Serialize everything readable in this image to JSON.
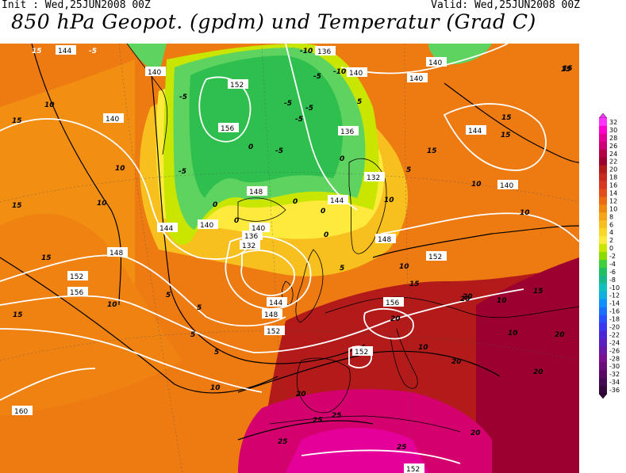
{
  "header": {
    "init": "Init : Wed,25JUN2008 00Z",
    "valid": "Valid: Wed,25JUN2008 00Z",
    "title": "850 hPa Geopot. (gpdm) und Temperatur (Grad C)"
  },
  "legend": {
    "labels": [
      "32",
      "30",
      "28",
      "26",
      "24",
      "22",
      "20",
      "18",
      "16",
      "14",
      "12",
      "10",
      "8",
      "6",
      "4",
      "2",
      "0",
      "-2",
      "-4",
      "-6",
      "-8",
      "-10",
      "-12",
      "-14",
      "-16",
      "-18",
      "-20",
      "-22",
      "-24",
      "-26",
      "-28",
      "-30",
      "-32",
      "-34",
      "-36"
    ],
    "colors": [
      "#ff33ff",
      "#ff00cc",
      "#e6009a",
      "#cc0077",
      "#b30047",
      "#9b0030",
      "#b31a1a",
      "#c8281e",
      "#d8361e",
      "#e24d1a",
      "#eb6a14",
      "#f0880f",
      "#f5a514",
      "#f8c01e",
      "#fbd72a",
      "#fdea3c",
      "#c8e600",
      "#8cdc00",
      "#3fcf3f",
      "#20c060",
      "#18b88a",
      "#10c0c0",
      "#10b0e0",
      "#1090ff",
      "#1870ff",
      "#2850ff",
      "#3a38f0",
      "#4a28d8",
      "#5a20c0",
      "#6a18a8",
      "#7a1090",
      "#6a0c7a",
      "#580a66",
      "#460852",
      "#34063e"
    ]
  },
  "map_labels": {
    "geopotential": [
      "144",
      "140",
      "140",
      "152",
      "156",
      "136",
      "140",
      "140",
      "140",
      "144",
      "132",
      "148",
      "144",
      "144",
      "140",
      "140",
      "136",
      "132",
      "144",
      "148",
      "152",
      "148",
      "152",
      "156",
      "156",
      "152",
      "148",
      "160",
      "152",
      "152",
      "140",
      "136"
    ],
    "temperature": [
      "15",
      "-5",
      "-10",
      "-5",
      "-5",
      "-5",
      "-5",
      "-5",
      "-5",
      "-5",
      "0",
      "0",
      "0",
      "0",
      "0",
      "0",
      "0",
      "5",
      "5",
      "5",
      "5",
      "5",
      "5",
      "10",
      "10",
      "10",
      "10",
      "10",
      "10",
      "10",
      "10",
      "10",
      "15",
      "15",
      "15",
      "15",
      "15",
      "15",
      "15",
      "20",
      "20",
      "20",
      "20",
      "20",
      "20",
      "20",
      "25",
      "25",
      "25",
      "25",
      "15",
      "10",
      "-10",
      "15",
      "10",
      "20",
      "5",
      "15",
      "10",
      "15"
    ]
  }
}
